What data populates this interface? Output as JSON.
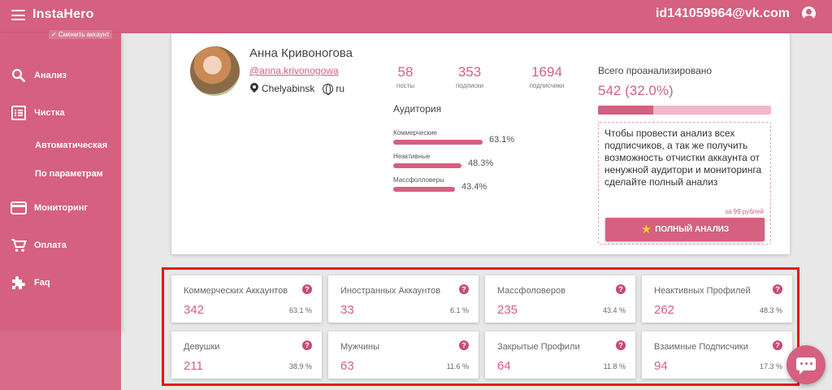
{
  "header": {
    "app_title": "InstaHero",
    "account_email": "id141059964@vk.com"
  },
  "sidebar": {
    "change_account": "✓ Сменить аккаунт",
    "items": [
      {
        "label": "Анализ",
        "icon": "search-icon"
      },
      {
        "label": "Чистка",
        "icon": "list-icon"
      },
      {
        "label": "Мониторинг",
        "icon": "card-icon"
      },
      {
        "label": "Оплата",
        "icon": "cart-icon"
      },
      {
        "label": "Faq",
        "icon": "puzzle-icon"
      }
    ],
    "sub_items": [
      "Автоматическая",
      "По параметрам"
    ]
  },
  "profile": {
    "name": "Анна Кривоногова",
    "handle": "@anna.krivonogowa",
    "city": "Chelyabinsk",
    "language": "ru",
    "stats": [
      {
        "value": "58",
        "label": "посты"
      },
      {
        "value": "353",
        "label": "подписки"
      },
      {
        "value": "1694",
        "label": "подписчики"
      }
    ],
    "audience_title": "Аудитория",
    "audience": [
      {
        "label": "Коммерческие",
        "percent": 63.1,
        "percent_text": "63.1%"
      },
      {
        "label": "Неактивные",
        "percent": 48.3,
        "percent_text": "48.3%"
      },
      {
        "label": "Массфолловеры",
        "percent": 43.4,
        "percent_text": "43.4%"
      }
    ],
    "total_title": "Всего проанализировано",
    "total_value": "542 (32.0%)",
    "total_fraction": 0.32,
    "promo_text": "Чтобы провести анализ всех подписчиков, а так же получить возможность отчистки аккаунта от ненужной аудитори и мониторинга сделайте полный анализ",
    "promo_price": "за 99 рублей",
    "full_analysis_button": "ПОЛНЫЙ АНАЛИЗ"
  },
  "metrics": [
    {
      "label": "Коммерческих Аккаунтов",
      "value": "342",
      "percent": "63.1 %"
    },
    {
      "label": "Иностранных Аккаунтов",
      "value": "33",
      "percent": "6.1 %"
    },
    {
      "label": "Массфоловеров",
      "value": "235",
      "percent": "43.4 %"
    },
    {
      "label": "Неактивных Профилей",
      "value": "262",
      "percent": "48.3 %"
    },
    {
      "label": "Девушки",
      "value": "211",
      "percent": "38.9 %"
    },
    {
      "label": "Мужчины",
      "value": "63",
      "percent": "11.6 %"
    },
    {
      "label": "Закрытые Профили",
      "value": "64",
      "percent": "11.8 %"
    },
    {
      "label": "Взаимные Подписчики",
      "value": "94",
      "percent": "17.3 %"
    }
  ],
  "colors": {
    "accent": "#d5607f",
    "highlight": "#e8141a",
    "help": "#c94a72"
  }
}
